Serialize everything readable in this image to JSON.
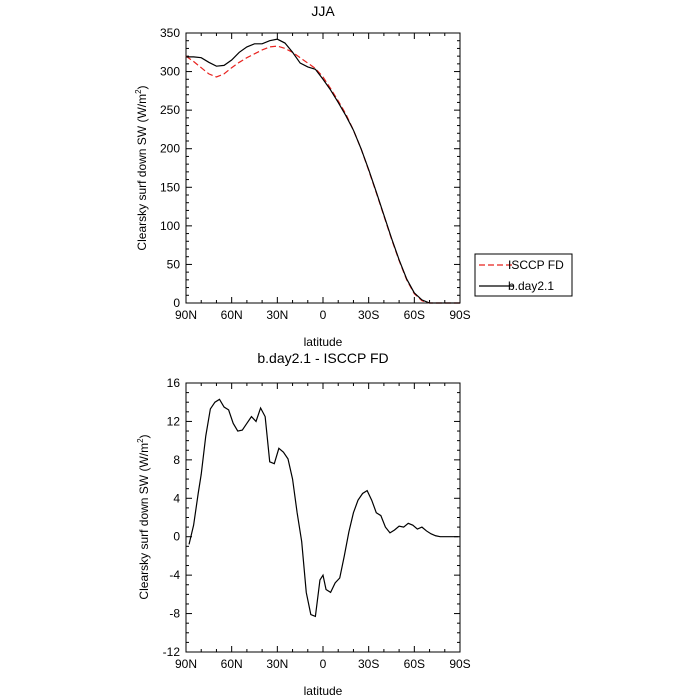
{
  "chart_data": [
    {
      "type": "line",
      "title": "JJA",
      "xlabel": "latitude",
      "ylabel": "Clearsky surf down SW (W/m",
      "ylabel_sup": "2",
      "ylabel_end": ")",
      "xlim": [
        90,
        -90
      ],
      "ylim": [
        0,
        350
      ],
      "x_ticks": [
        90,
        60,
        30,
        0,
        -30,
        -60,
        -90
      ],
      "x_tick_labels": [
        "90N",
        "60N",
        "30N",
        "0",
        "30S",
        "60S",
        "90S"
      ],
      "y_ticks": [
        0,
        50,
        100,
        150,
        200,
        250,
        300,
        350
      ],
      "y_tick_labels": [
        "0",
        "50",
        "100",
        "150",
        "200",
        "250",
        "300",
        "350"
      ],
      "legend_position": "right",
      "series": [
        {
          "name": "ISCCP FD",
          "color": "#e8231f",
          "dash": "dashed",
          "x": [
            90,
            85,
            80,
            75,
            70,
            65,
            60,
            55,
            50,
            45,
            40,
            35,
            30,
            25,
            20,
            15,
            10,
            5,
            0,
            -5,
            -10,
            -15,
            -20,
            -25,
            -30,
            -35,
            -40,
            -45,
            -50,
            -55,
            -60,
            -65,
            -70,
            -75,
            -80,
            -85,
            -90
          ],
          "y": [
            320,
            313,
            305,
            297,
            293,
            297,
            305,
            312,
            318,
            323,
            328,
            332,
            333,
            330,
            325,
            318,
            311,
            304,
            293,
            278,
            262,
            245,
            224,
            200,
            172,
            143,
            113,
            83,
            55,
            30,
            12,
            3,
            0,
            0,
            0,
            0,
            0
          ]
        },
        {
          "name": "b.day2.1",
          "color": "#000000",
          "dash": "solid",
          "x": [
            90,
            85,
            80,
            75,
            70,
            65,
            60,
            55,
            50,
            45,
            40,
            35,
            30,
            25,
            20,
            15,
            10,
            5,
            0,
            -5,
            -10,
            -15,
            -20,
            -25,
            -30,
            -35,
            -40,
            -45,
            -50,
            -55,
            -60,
            -65,
            -70,
            -75,
            -80,
            -85,
            -90
          ],
          "y": [
            319,
            319,
            318,
            312,
            307,
            308,
            315,
            325,
            332,
            336,
            336,
            340,
            342,
            337,
            325,
            311,
            306,
            303,
            290,
            276,
            260,
            243,
            224,
            200,
            173,
            144,
            114,
            84,
            56,
            31,
            13,
            4,
            0,
            0,
            0,
            0,
            0
          ]
        }
      ]
    },
    {
      "type": "line",
      "title": "b.day2.1 - ISCCP FD",
      "xlabel": "latitude",
      "ylabel": "Clearsky surf down SW (W/m",
      "ylabel_sup": "2",
      "ylabel_end": ")",
      "xlim": [
        90,
        -90
      ],
      "ylim": [
        -12,
        16
      ],
      "x_ticks": [
        90,
        60,
        30,
        0,
        -30,
        -60,
        -90
      ],
      "x_tick_labels": [
        "90N",
        "60N",
        "30N",
        "0",
        "30S",
        "60S",
        "90S"
      ],
      "y_ticks": [
        -12,
        -8,
        -4,
        0,
        4,
        8,
        12,
        16
      ],
      "y_tick_labels": [
        "-12",
        "-8",
        "-4",
        "0",
        "4",
        "8",
        "12",
        "16"
      ],
      "series": [
        {
          "color": "#000000",
          "dash": "solid",
          "x": [
            88,
            85,
            82,
            80,
            77,
            74,
            71,
            68,
            65,
            62,
            59,
            56,
            53,
            50,
            47,
            44,
            41,
            38,
            35,
            32,
            29,
            26,
            23,
            20,
            17,
            14,
            11,
            8,
            5,
            2,
            0,
            -2,
            -5,
            -8,
            -11,
            -14,
            -17,
            -20,
            -23,
            -26,
            -29,
            -32,
            -35,
            -38,
            -41,
            -44,
            -47,
            -50,
            -53,
            -56,
            -59,
            -62,
            -65,
            -68,
            -71,
            -74,
            -77,
            -80,
            -83,
            -86,
            -89
          ],
          "y": [
            -0.8,
            1.2,
            4.5,
            6.5,
            10.5,
            13.3,
            14.0,
            14.3,
            13.5,
            13.2,
            11.8,
            11.0,
            11.1,
            11.8,
            12.5,
            12.0,
            13.4,
            12.5,
            7.8,
            7.6,
            9.2,
            8.8,
            8.1,
            6.0,
            2.5,
            -0.5,
            -5.8,
            -8.1,
            -8.3,
            -4.5,
            -4.0,
            -5.5,
            -5.8,
            -4.8,
            -4.3,
            -2.0,
            0.5,
            2.5,
            3.8,
            4.5,
            4.8,
            3.8,
            2.5,
            2.2,
            1.0,
            0.4,
            0.7,
            1.1,
            1.0,
            1.4,
            1.2,
            0.8,
            1.0,
            0.6,
            0.3,
            0.1,
            0.0,
            0.0,
            0.0,
            0.0,
            0.0
          ]
        }
      ]
    }
  ]
}
